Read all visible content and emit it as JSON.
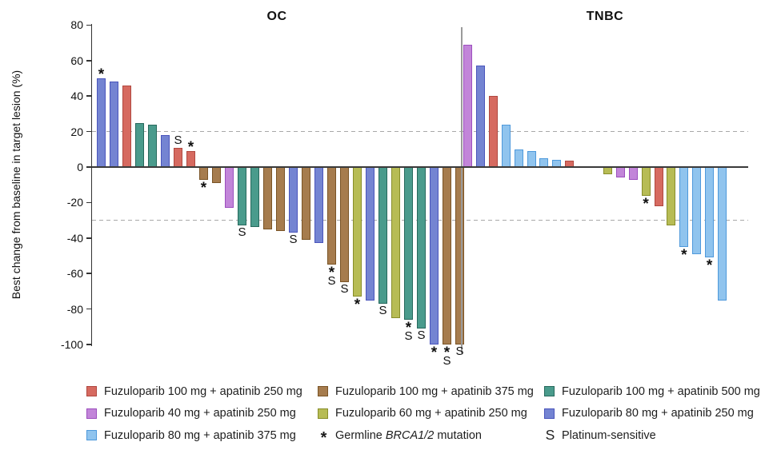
{
  "chart_data": {
    "type": "bar",
    "subtype": "waterfall",
    "ylabel": "Best change from baseline in target lesion (%)",
    "ylim": [
      -100,
      80
    ],
    "yticks": [
      80,
      60,
      40,
      20,
      0,
      -20,
      -40,
      -60,
      -80,
      -100
    ],
    "reference_lines": [
      20,
      -30
    ],
    "grid": false,
    "legend_position": "bottom",
    "groups": {
      "f100a250": {
        "label": "Fuzuloparib 100 mg + apatinib 250 mg",
        "fill": "#D66A60",
        "border": "#B04840"
      },
      "f100a375": {
        "label": "Fuzuloparib 100 mg + apatinib 375 mg",
        "fill": "#A67C4E",
        "border": "#7A5426"
      },
      "f100a500": {
        "label": "Fuzuloparib 100 mg + apatinib 500 mg",
        "fill": "#4A9B8C",
        "border": "#27695D"
      },
      "f40a250": {
        "label": "Fuzuloparib 40 mg + apatinib 250 mg",
        "fill": "#C285D9",
        "border": "#9C4FBE"
      },
      "f60a250": {
        "label": "Fuzuloparib 60 mg + apatinib 250 mg",
        "fill": "#B7BC55",
        "border": "#888E2A"
      },
      "f80a250": {
        "label": "Fuzuloparib 80 mg + apatinib 250 mg",
        "fill": "#7484D2",
        "border": "#4A55BC"
      },
      "f80a375": {
        "label": "Fuzuloparib 80 mg + apatinib 375 mg",
        "fill": "#90C4EE",
        "border": "#4E99DB"
      }
    },
    "symbols": {
      "brca": {
        "glyph": "*",
        "label_pre": "Germline ",
        "label_italic": "BRCA1/2",
        "label_post": " mutation"
      },
      "ps": {
        "glyph": "S",
        "label": "Platinum-sensitive"
      }
    },
    "legend_columns": [
      [
        "f100a250",
        "f40a250",
        "f80a375"
      ],
      [
        "f100a375",
        "f60a250",
        "sym:brca"
      ],
      [
        "f100a500",
        "f80a250",
        "sym:ps"
      ]
    ],
    "panels": [
      {
        "title": "OC",
        "bars": [
          {
            "group": "f80a250",
            "value": 50,
            "marks": [
              "brca"
            ]
          },
          {
            "group": "f80a250",
            "value": 48
          },
          {
            "group": "f100a250",
            "value": 46
          },
          {
            "group": "f100a500",
            "value": 25
          },
          {
            "group": "f100a500",
            "value": 24
          },
          {
            "group": "f80a250",
            "value": 18
          },
          {
            "group": "f100a250",
            "value": 11,
            "marks": [
              "ps"
            ]
          },
          {
            "group": "f100a250",
            "value": 9,
            "marks": [
              "brca"
            ]
          },
          {
            "group": "f100a375",
            "value": -7,
            "marks": [
              "brca"
            ]
          },
          {
            "group": "f100a375",
            "value": -9
          },
          {
            "group": "f40a250",
            "value": -23
          },
          {
            "group": "f100a500",
            "value": -33,
            "marks": [
              "ps"
            ]
          },
          {
            "group": "f100a500",
            "value": -34
          },
          {
            "group": "f100a375",
            "value": -35
          },
          {
            "group": "f100a375",
            "value": -36
          },
          {
            "group": "f80a250",
            "value": -37,
            "marks": [
              "ps"
            ]
          },
          {
            "group": "f100a375",
            "value": -41
          },
          {
            "group": "f80a250",
            "value": -43
          },
          {
            "group": "f100a375",
            "value": -55,
            "marks": [
              "brca",
              "ps"
            ]
          },
          {
            "group": "f100a375",
            "value": -65,
            "marks": [
              "ps"
            ]
          },
          {
            "group": "f60a250",
            "value": -73,
            "marks": [
              "brca"
            ]
          },
          {
            "group": "f80a250",
            "value": -75
          },
          {
            "group": "f100a500",
            "value": -77,
            "marks": [
              "ps"
            ]
          },
          {
            "group": "f60a250",
            "value": -85
          },
          {
            "group": "f100a500",
            "value": -86,
            "marks": [
              "brca",
              "ps"
            ]
          },
          {
            "group": "f100a500",
            "value": -91,
            "marks": [
              "ps"
            ]
          },
          {
            "group": "f80a250",
            "value": -100,
            "marks": [
              "brca"
            ]
          },
          {
            "group": "f100a375",
            "value": -100,
            "marks": [
              "brca",
              "ps"
            ]
          },
          {
            "group": "f100a375",
            "value": -100,
            "marks": [
              "ps"
            ]
          }
        ]
      },
      {
        "title": "TNBC",
        "bars": [
          {
            "group": "f40a250",
            "value": 69
          },
          {
            "group": "f80a250",
            "value": 57
          },
          {
            "group": "f100a250",
            "value": 40
          },
          {
            "group": "f80a375",
            "value": 24
          },
          {
            "group": "f80a375",
            "value": 10
          },
          {
            "group": "f80a375",
            "value": 9
          },
          {
            "group": "f80a375",
            "value": 5
          },
          {
            "group": "f80a375",
            "value": 4
          },
          {
            "group": "f100a250",
            "value": 3.5
          },
          {
            "gap": true
          },
          {
            "gap": true
          },
          {
            "group": "f60a250",
            "value": -4
          },
          {
            "group": "f40a250",
            "value": -6
          },
          {
            "group": "f40a250",
            "value": -7
          },
          {
            "group": "f60a250",
            "value": -16,
            "marks": [
              "brca"
            ]
          },
          {
            "group": "f100a250",
            "value": -22
          },
          {
            "group": "f60a250",
            "value": -33
          },
          {
            "group": "f80a375",
            "value": -45,
            "marks": [
              "brca"
            ]
          },
          {
            "group": "f80a375",
            "value": -49
          },
          {
            "group": "f80a375",
            "value": -51,
            "marks": [
              "brca"
            ]
          },
          {
            "group": "f80a375",
            "value": -75
          }
        ]
      }
    ]
  }
}
